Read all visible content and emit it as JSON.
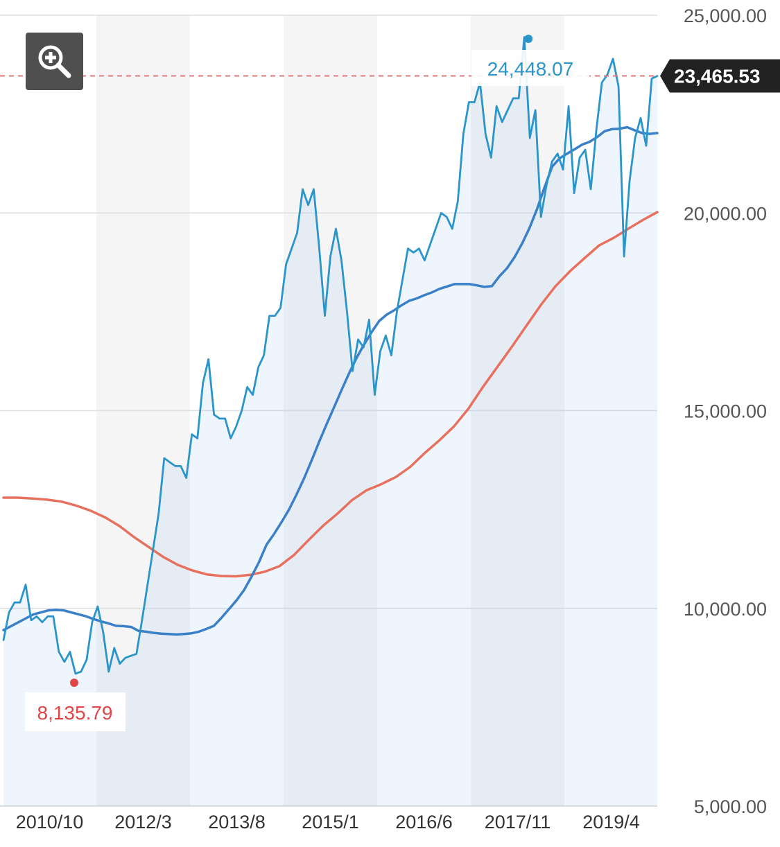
{
  "chart_data": {
    "type": "line",
    "y_ticks": [
      5000,
      10000,
      15000,
      20000,
      25000
    ],
    "y_tick_labels": [
      "5,000.00",
      "10,000.00",
      "15,000.00",
      "20,000.00",
      "25,000.00"
    ],
    "ylim": [
      5000,
      25000
    ],
    "x_tick_labels": [
      "2010/10",
      "2012/3",
      "2013/8",
      "2015/1",
      "2016/6",
      "2017/11",
      "2019/4"
    ],
    "xlabel": "",
    "ylabel": "",
    "title": "",
    "grid": true,
    "series": [
      {
        "role": "price",
        "color": "#2b95c9",
        "values": [
          9200,
          9900,
          10150,
          10150,
          10600,
          9700,
          9800,
          9650,
          9800,
          9800,
          8900,
          8650,
          8900,
          8350,
          8400,
          8700,
          9650,
          10050,
          9400,
          8400,
          9000,
          8600,
          8750,
          8800,
          8850,
          9700,
          10600,
          11500,
          12400,
          13800,
          13700,
          13600,
          13600,
          13300,
          14400,
          14300,
          15700,
          16300,
          14900,
          14800,
          14800,
          14300,
          14600,
          15000,
          15600,
          15400,
          16100,
          16400,
          17400,
          17400,
          17600,
          18700,
          19100,
          19500,
          20600,
          20200,
          20600,
          19100,
          17400,
          18900,
          19600,
          18800,
          17500,
          16000,
          16800,
          16600,
          17300,
          15400,
          16500,
          16900,
          16400,
          17500,
          18300,
          19100,
          19000,
          19100,
          18800,
          19200,
          19600,
          20000,
          19900,
          19600,
          20300,
          22000,
          22800,
          22800,
          23300,
          22000,
          21400,
          22700,
          22300,
          22600,
          22900,
          22900,
          24448,
          21900,
          22600,
          19900,
          20700,
          21300,
          21500,
          21100,
          22700,
          20500,
          21400,
          21600,
          20600,
          22100,
          23300,
          23500,
          23900,
          23200,
          18900,
          20800,
          21900,
          22400,
          21700,
          23400,
          23465
        ]
      },
      {
        "role": "moving-average-short",
        "color": "#3a80c8",
        "values": [
          9450,
          9550,
          9650,
          9750,
          9850,
          9900,
          9950,
          9960,
          9950,
          9900,
          9850,
          9800,
          9730,
          9670,
          9620,
          9560,
          9550,
          9530,
          9430,
          9410,
          9380,
          9360,
          9350,
          9340,
          9350,
          9370,
          9410,
          9480,
          9560,
          9760,
          9980,
          10200,
          10460,
          10800,
          11170,
          11610,
          11880,
          12180,
          12500,
          12880,
          13290,
          13740,
          14210,
          14660,
          15090,
          15530,
          15950,
          16340,
          16680,
          16990,
          17270,
          17430,
          17540,
          17670,
          17780,
          17840,
          17920,
          17990,
          18080,
          18140,
          18200,
          18200,
          18200,
          18170,
          18130,
          18150,
          18400,
          18600,
          18880,
          19220,
          19620,
          20100,
          20650,
          21170,
          21380,
          21500,
          21610,
          21730,
          21800,
          21920,
          22070,
          22120,
          22130,
          22170,
          22090,
          22020,
          22000,
          22020
        ]
      },
      {
        "role": "moving-average-long",
        "color": "#e8705e",
        "values": [
          12800,
          12800,
          12780,
          12750,
          12700,
          12600,
          12470,
          12300,
          12080,
          11800,
          11550,
          11300,
          11100,
          10960,
          10860,
          10820,
          10810,
          10850,
          10930,
          11070,
          11350,
          11730,
          12090,
          12400,
          12740,
          12990,
          13140,
          13320,
          13580,
          13930,
          14250,
          14600,
          15050,
          15600,
          16110,
          16620,
          17150,
          17680,
          18150,
          18530,
          18860,
          19180,
          19370,
          19600,
          19820,
          20020
        ]
      }
    ],
    "annotations": [
      {
        "label": "24,448.07",
        "value": 24448.07,
        "kind": "max",
        "color": "#2b95c9"
      },
      {
        "label": "8,135.79",
        "value": 8135.79,
        "kind": "min",
        "color": "#e04646"
      },
      {
        "label": "23,465.53",
        "value": 23465.53,
        "kind": "current",
        "color": "#222222"
      }
    ],
    "legend": "none"
  },
  "ui": {
    "zoom_button": {
      "icon": "zoom-in-icon"
    }
  }
}
